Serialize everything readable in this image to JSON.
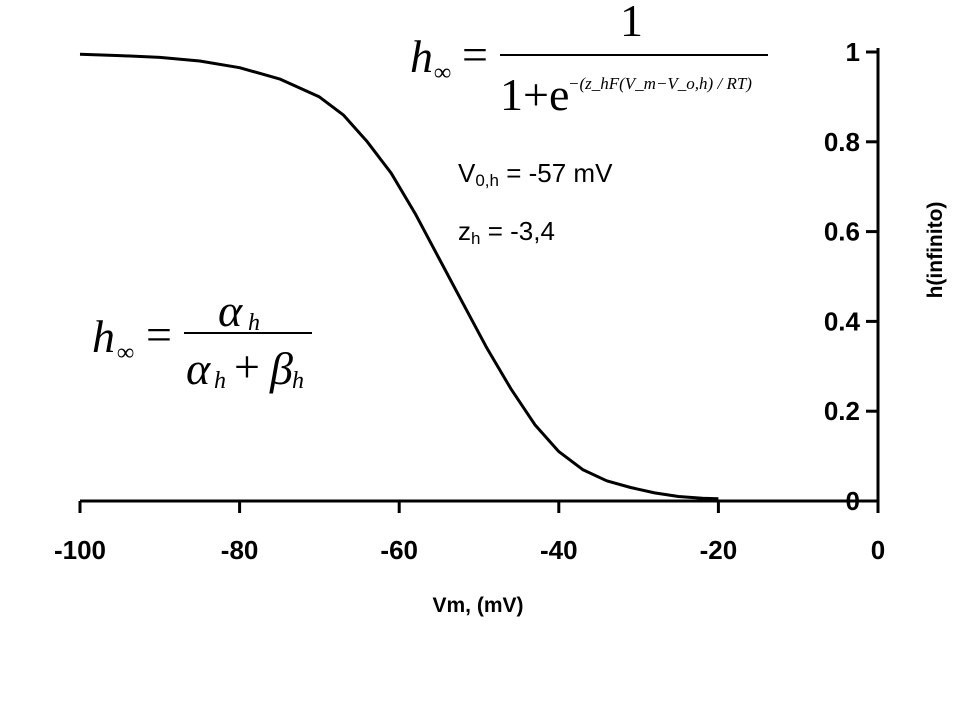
{
  "chart_data": {
    "type": "line",
    "title": "",
    "xlabel": "Vm, (mV)",
    "ylabel": "h(infinito)",
    "xlim": [
      -100,
      0
    ],
    "ylim": [
      0,
      1
    ],
    "x_ticks": [
      "-100",
      "-80",
      "-60",
      "-40",
      "-20",
      "0"
    ],
    "y_ticks": [
      "0",
      "0.2",
      "0.4",
      "0.6",
      "0.8",
      "1"
    ],
    "y_axis_position": "right",
    "grid": false,
    "legend": "none",
    "line_color": "#000000",
    "series": [
      {
        "x": [
          -100,
          -95,
          -90,
          -85,
          -80,
          -75,
          -70,
          -67,
          -64,
          -61,
          -58,
          -55,
          -52,
          -49,
          -46,
          -43,
          -40,
          -37,
          -34,
          -31,
          -28,
          -25,
          -22,
          -20
        ],
        "y": [
          0.995,
          0.992,
          0.988,
          0.98,
          0.965,
          0.94,
          0.9,
          0.86,
          0.8,
          0.73,
          0.64,
          0.54,
          0.44,
          0.34,
          0.25,
          0.17,
          0.11,
          0.07,
          0.045,
          0.03,
          0.018,
          0.01,
          0.006,
          0.005
        ]
      }
    ]
  },
  "annotations": {
    "v0h_main": "V",
    "v0h_sub": "0,h",
    "v0h_value": "= -57 mV",
    "zh_main": "z",
    "zh_sub": "h",
    "zh_value": "= -3,4"
  },
  "equation_top": {
    "lhs": "h",
    "lhs_sub": "∞",
    "equals": "=",
    "numerator": "1",
    "denominator_base": "1+e",
    "exponent": "−(z_hF(V_m−V_o,h) / RT)"
  },
  "equation_left": {
    "lhs": "h",
    "lhs_sub": "∞",
    "equals": "=",
    "numerator": "α",
    "numerator_sub": "h",
    "denominator_a": "α",
    "denominator_a_sub": "h",
    "plus": "+",
    "denominator_b": "β",
    "denominator_b_sub": "h"
  }
}
